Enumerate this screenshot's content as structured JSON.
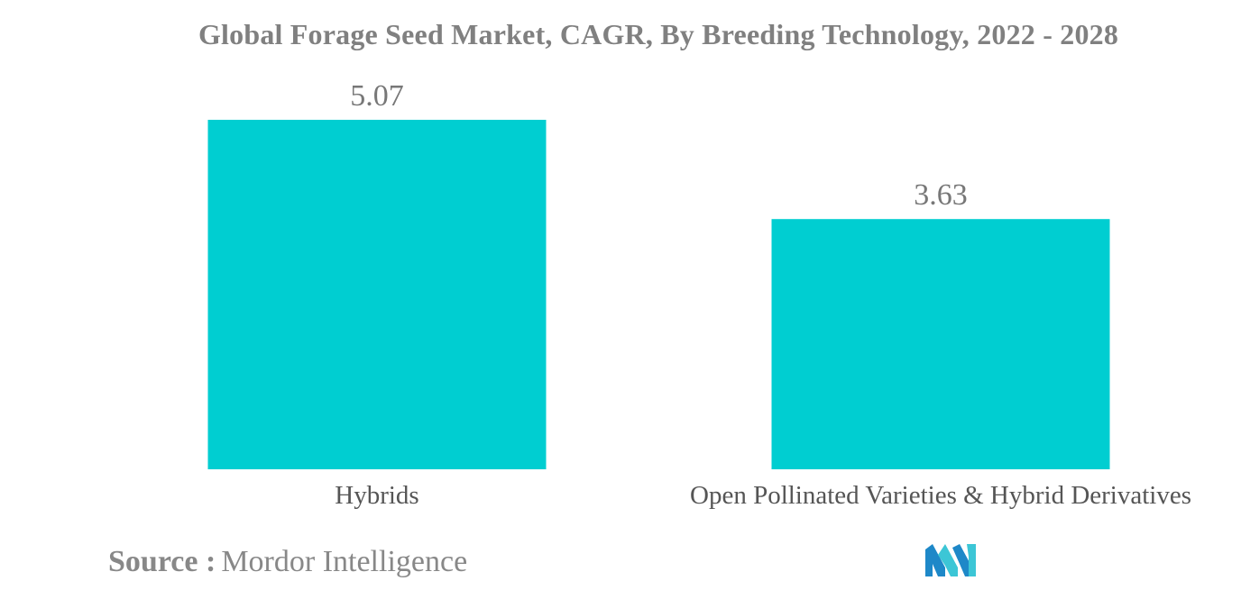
{
  "chart_data": {
    "type": "bar",
    "title": "Global Forage Seed Market, CAGR, By Breeding Technology, 2022 - 2028",
    "categories": [
      "Hybrids",
      "Open Pollinated Varieties & Hybrid Derivatives"
    ],
    "values": [
      5.07,
      3.63
    ],
    "value_labels": [
      "5.07",
      "3.63"
    ],
    "xlabel": "",
    "ylabel": "",
    "ylim": [
      0,
      5.07
    ],
    "grid": false,
    "legend": "none",
    "bar_color": "#00CED1"
  },
  "source": {
    "label": "Source :",
    "value": "Mordor Intelligence"
  },
  "logo": {
    "icon": "mordor-intelligence-logo-icon",
    "colors": [
      "#1E88C8",
      "#3CC6D6"
    ]
  }
}
